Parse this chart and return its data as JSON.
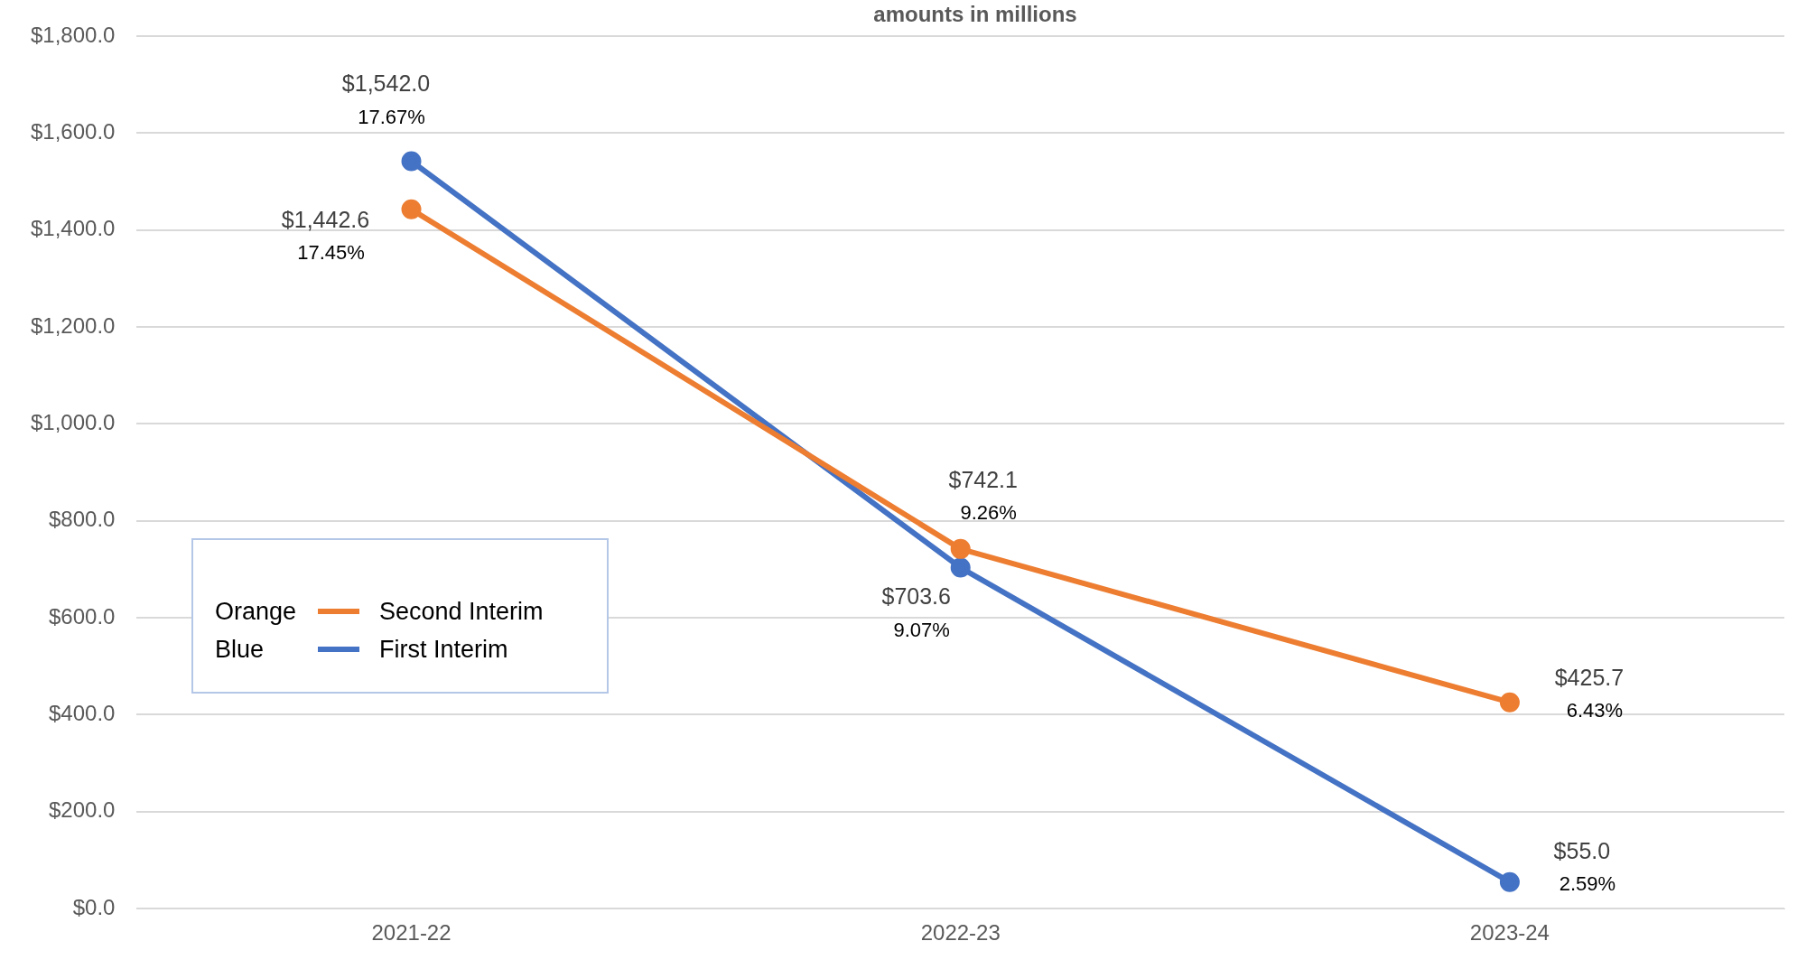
{
  "chart_data": {
    "type": "line",
    "subtitle": "amounts in millions",
    "categories": [
      "2021-22",
      "2022-23",
      "2023-24"
    ],
    "series": [
      {
        "name": "Second Interim",
        "color": "#ed7d31",
        "values": [
          1442.6,
          742.1,
          425.7
        ],
        "value_labels": [
          "$1,442.6",
          "$742.1",
          "$425.7"
        ]
      },
      {
        "name": "First Interim",
        "color": "#4472c4",
        "values": [
          1542.0,
          703.6,
          55.0
        ],
        "value_labels": [
          "$1,542.0",
          "$703.6",
          "$55.0"
        ]
      }
    ],
    "ylim": [
      0,
      1800
    ],
    "yticks": [
      {
        "value": 0,
        "label": "$0.0"
      },
      {
        "value": 200,
        "label": "$200.0"
      },
      {
        "value": 400,
        "label": "$400.0"
      },
      {
        "value": 600,
        "label": "$600.0"
      },
      {
        "value": 800,
        "label": "$800.0"
      },
      {
        "value": 1000,
        "label": "$1,000.0"
      },
      {
        "value": 1200,
        "label": "$1,200.0"
      },
      {
        "value": 1400,
        "label": "$1,400.0"
      },
      {
        "value": 1600,
        "label": "$1,600.0"
      },
      {
        "value": 1800,
        "label": "$1,800.0"
      }
    ],
    "grid": "y",
    "legend": "left",
    "marker": "circle",
    "line_style": "solid",
    "annotations": [
      {
        "text": "17.45%",
        "x": "2021-22",
        "y": 1442.6
      },
      {
        "text": "9.26%",
        "x": "2022-23",
        "y": 742.1
      },
      {
        "text": "6.43%",
        "x": "2023-24",
        "y": 425.7
      },
      {
        "text": "17.67%",
        "x": "2021-22",
        "y": 1542.0
      },
      {
        "text": "9.07%",
        "x": "2022-23",
        "y": 703.6
      },
      {
        "text": "2.59%",
        "x": "2023-24",
        "y": 55.0
      },
      "Orange",
      "Blue"
    ]
  }
}
